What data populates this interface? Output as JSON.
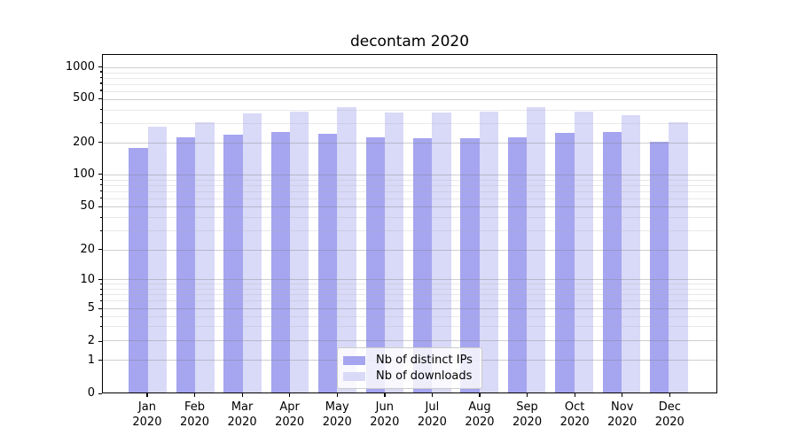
{
  "chart_data": {
    "type": "bar",
    "title": "decontam 2020",
    "categories": [
      "Jan 2020",
      "Feb 2020",
      "Mar 2020",
      "Apr 2020",
      "May 2020",
      "Jun 2020",
      "Jul 2020",
      "Aug 2020",
      "Sep 2020",
      "Oct 2020",
      "Nov 2020",
      "Dec 2020"
    ],
    "series": [
      {
        "name": "Nb of distinct IPs",
        "color": "#a5a5f0",
        "values": [
          180,
          225,
          235,
          250,
          240,
          225,
          220,
          220,
          225,
          245,
          250,
          205
        ]
      },
      {
        "name": "Nb of downloads",
        "color": "#d9d9f8",
        "values": [
          280,
          310,
          370,
          385,
          420,
          380,
          380,
          385,
          425,
          385,
          360,
          310
        ]
      }
    ],
    "yscale": "symlog",
    "ylim": [
      0,
      1000
    ],
    "y_ticks": [
      0,
      1,
      2,
      5,
      10,
      20,
      50,
      100,
      200,
      500,
      1000
    ],
    "y_minor_ticks": [
      3,
      4,
      6,
      7,
      8,
      9,
      30,
      40,
      60,
      70,
      80,
      90,
      300,
      400,
      600,
      700,
      800,
      900
    ],
    "grid": true,
    "legend_position": "lower center"
  },
  "colors": {
    "bar_distinct_ips": "#a5a5f0",
    "bar_downloads": "#d9d9f8",
    "major_grid": "#cfcfcf",
    "minor_grid": "#e4e4e4",
    "spine": "#000000"
  }
}
